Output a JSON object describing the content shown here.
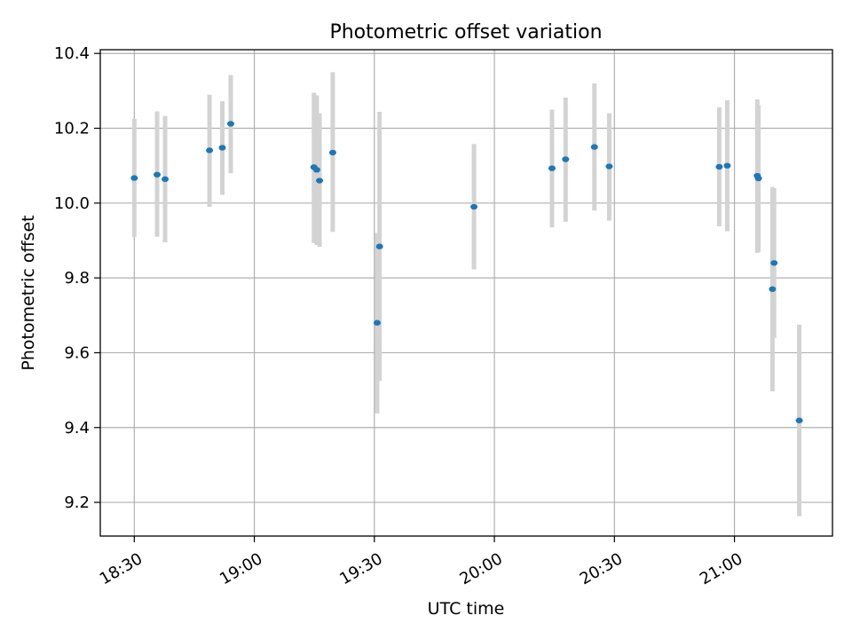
{
  "chart_data": {
    "type": "scatter",
    "title": "Photometric offset variation",
    "xlabel": "UTC time",
    "ylabel": "Photometric offset",
    "x_tick_labels": [
      "18:30",
      "19:00",
      "19:30",
      "20:00",
      "20:30",
      "21:00"
    ],
    "y_tick_labels": [
      "9.2",
      "9.4",
      "9.6",
      "9.8",
      "10.0",
      "10.2",
      "10.4"
    ],
    "x_ticks": [
      "18:30",
      "19:00",
      "19:30",
      "20:00",
      "20:30",
      "21:00"
    ],
    "y_ticks": [
      9.2,
      9.4,
      9.6,
      9.8,
      10.0,
      10.2,
      10.4
    ],
    "xlim": [
      "18:21.5",
      "21:24.5"
    ],
    "ylim": [
      9.11,
      10.41
    ],
    "grid": true,
    "point_color": "#1f77b4",
    "errorbar_color": "#d3d3d3",
    "points": [
      {
        "x": "18:30.0",
        "y": 10.067,
        "lo": 9.91,
        "hi": 10.225
      },
      {
        "x": "18:35.7",
        "y": 10.076,
        "lo": 9.91,
        "hi": 10.245
      },
      {
        "x": "18:37.7",
        "y": 10.064,
        "lo": 9.895,
        "hi": 10.233
      },
      {
        "x": "18:48.8",
        "y": 10.141,
        "lo": 9.99,
        "hi": 10.29
      },
      {
        "x": "18:52.0",
        "y": 10.148,
        "lo": 10.022,
        "hi": 10.272
      },
      {
        "x": "18:54.1",
        "y": 10.212,
        "lo": 10.08,
        "hi": 10.342
      },
      {
        "x": "19:14.9",
        "y": 10.096,
        "lo": 9.893,
        "hi": 10.295
      },
      {
        "x": "19:15.6",
        "y": 10.089,
        "lo": 9.888,
        "hi": 10.288
      },
      {
        "x": "19:16.3",
        "y": 10.06,
        "lo": 9.883,
        "hi": 10.24
      },
      {
        "x": "19:19.6",
        "y": 10.135,
        "lo": 9.923,
        "hi": 10.35
      },
      {
        "x": "19:30.7",
        "y": 9.68,
        "lo": 9.438,
        "hi": 9.92
      },
      {
        "x": "19:31.3",
        "y": 9.884,
        "lo": 9.525,
        "hi": 10.244
      },
      {
        "x": "19:54.9",
        "y": 9.99,
        "lo": 9.823,
        "hi": 10.158
      },
      {
        "x": "20:14.4",
        "y": 10.093,
        "lo": 9.935,
        "hi": 10.25
      },
      {
        "x": "20:17.8",
        "y": 10.117,
        "lo": 9.95,
        "hi": 10.282
      },
      {
        "x": "20:25.0",
        "y": 10.15,
        "lo": 9.98,
        "hi": 10.32
      },
      {
        "x": "20:28.7",
        "y": 10.098,
        "lo": 9.953,
        "hi": 10.24
      },
      {
        "x": "20:56.2",
        "y": 10.097,
        "lo": 9.938,
        "hi": 10.256
      },
      {
        "x": "20:58.2",
        "y": 10.1,
        "lo": 9.925,
        "hi": 10.275
      },
      {
        "x": "21:05.7",
        "y": 10.073,
        "lo": 9.867,
        "hi": 10.277
      },
      {
        "x": "21:06.0",
        "y": 10.066,
        "lo": 9.87,
        "hi": 10.262
      },
      {
        "x": "21:09.5",
        "y": 9.77,
        "lo": 9.497,
        "hi": 10.043
      },
      {
        "x": "21:09.9",
        "y": 9.84,
        "lo": 9.64,
        "hi": 10.04
      },
      {
        "x": "21:16.2",
        "y": 9.419,
        "lo": 9.163,
        "hi": 9.675
      }
    ]
  }
}
